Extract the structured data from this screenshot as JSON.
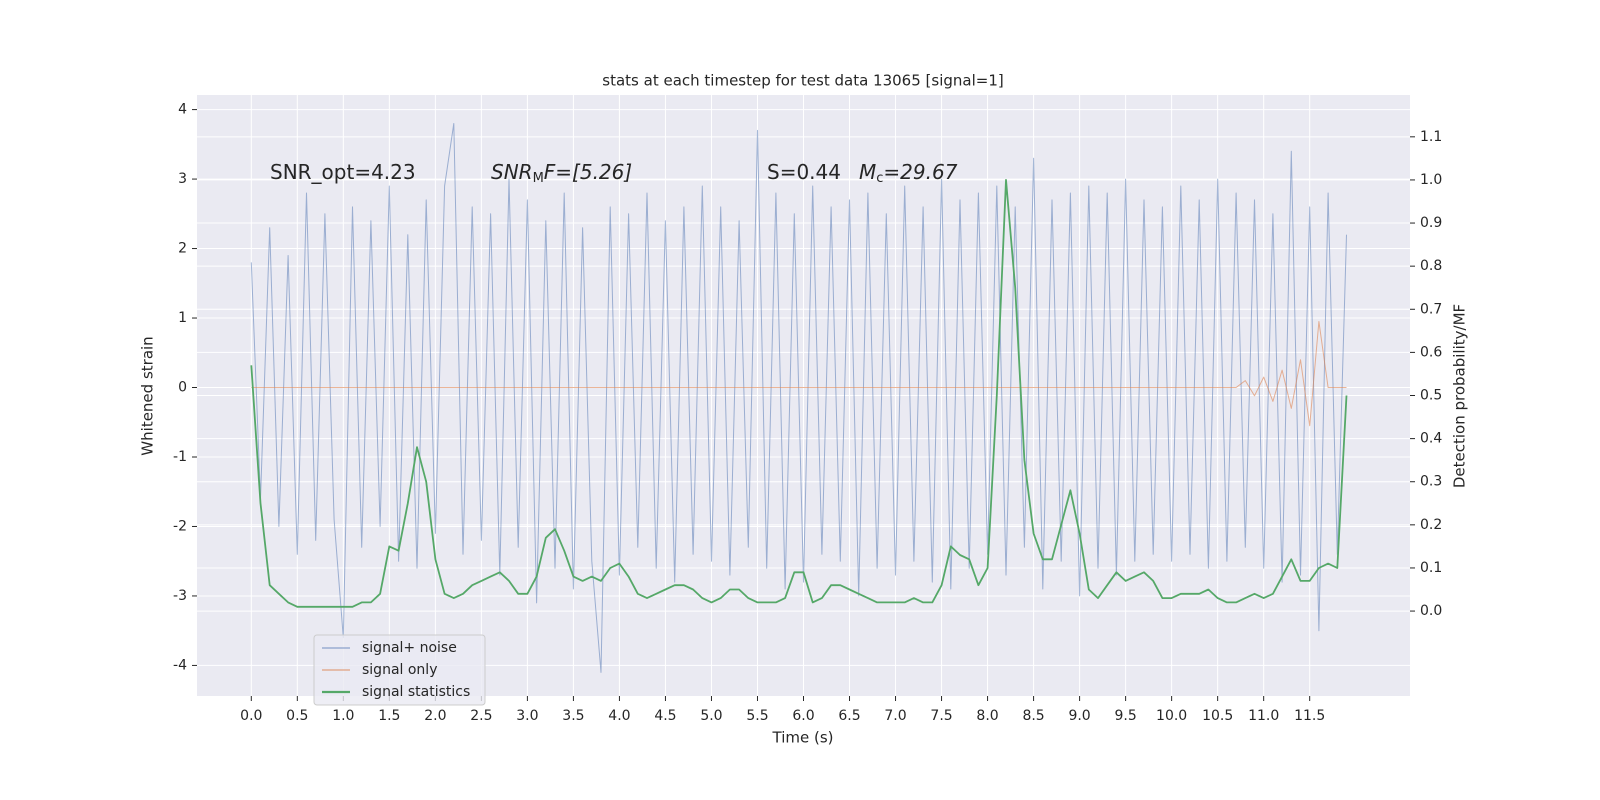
{
  "chart_data": {
    "type": "line",
    "title": "stats at each timestep for test data 13065 [signal=1]",
    "xlabel": "Time (s)",
    "ylabel": "Whitened strain",
    "y2label": "Detection probability/MF",
    "annotations": [
      {
        "parts": [
          "SNR_opt=4.23"
        ]
      },
      {
        "parts": [
          "SNR",
          "M",
          "F=[5.26]"
        ]
      },
      {
        "parts": [
          "S=0.44"
        ]
      },
      {
        "parts": [
          "M",
          "c",
          "=29.67"
        ]
      }
    ],
    "x": [
      0,
      0.1,
      0.2,
      0.3,
      0.4,
      0.5,
      0.6,
      0.7,
      0.8,
      0.9,
      1,
      1.1,
      1.2,
      1.3,
      1.4,
      1.5,
      1.6,
      1.7,
      1.8,
      1.9,
      2,
      2.1,
      2.2,
      2.3,
      2.4,
      2.5,
      2.6,
      2.7,
      2.8,
      2.9,
      3,
      3.1,
      3.2,
      3.3,
      3.4,
      3.5,
      3.6,
      3.7,
      3.8,
      3.9,
      4,
      4.1,
      4.2,
      4.3,
      4.4,
      4.5,
      4.6,
      4.7,
      4.8,
      4.9,
      5,
      5.1,
      5.2,
      5.3,
      5.4,
      5.5,
      5.6,
      5.7,
      5.8,
      5.9,
      6,
      6.1,
      6.2,
      6.3,
      6.4,
      6.5,
      6.6,
      6.7,
      6.8,
      6.9,
      7,
      7.1,
      7.2,
      7.3,
      7.4,
      7.5,
      7.6,
      7.7,
      7.8,
      7.9,
      8,
      8.1,
      8.2,
      8.3,
      8.4,
      8.5,
      8.6,
      8.7,
      8.8,
      8.9,
      9,
      9.1,
      9.2,
      9.3,
      9.4,
      9.5,
      9.6,
      9.7,
      9.8,
      9.9,
      10,
      10.1,
      10.2,
      10.3,
      10.4,
      10.5,
      10.6,
      10.7,
      10.8,
      10.9,
      11,
      11.1,
      11.2,
      11.3,
      11.4,
      11.5,
      11.6,
      11.7,
      11.8,
      11.9
    ],
    "series": [
      {
        "name": "signal+ noise",
        "color": "#4c72b0",
        "values": [
          1.8,
          -1.6,
          2.3,
          -2.0,
          1.9,
          -2.4,
          2.8,
          -2.2,
          2.5,
          -1.9,
          -3.6,
          2.6,
          -2.3,
          2.4,
          -2.0,
          2.9,
          -2.5,
          2.2,
          -2.6,
          2.7,
          -2.1,
          2.9,
          3.8,
          -2.4,
          2.6,
          -2.2,
          2.5,
          -2.7,
          3.0,
          -2.3,
          2.7,
          -3.1,
          2.4,
          -2.6,
          2.8,
          -2.9,
          2.3,
          -2.5,
          -4.1,
          2.6,
          -2.7,
          2.5,
          -2.3,
          2.8,
          -2.6,
          2.4,
          -2.8,
          2.6,
          -2.4,
          2.9,
          -2.5,
          2.6,
          -2.7,
          2.4,
          -2.3,
          3.7,
          -2.6,
          2.8,
          -2.9,
          2.5,
          -2.8,
          2.9,
          -2.4,
          2.6,
          -2.5,
          2.7,
          -3.0,
          2.8,
          -2.6,
          2.5,
          -2.7,
          2.9,
          -2.5,
          2.6,
          -2.8,
          3.0,
          -2.9,
          2.7,
          -2.6,
          2.8,
          -2.4,
          2.9,
          -2.7,
          2.6,
          -2.3,
          3.3,
          -2.9,
          2.7,
          -2.5,
          2.8,
          -3.0,
          2.9,
          -2.6,
          2.8,
          -2.7,
          3.0,
          -2.5,
          2.7,
          -2.4,
          2.6,
          -2.5,
          2.9,
          -2.4,
          2.7,
          -2.6,
          3.0,
          -2.5,
          2.8,
          -2.3,
          2.7,
          -2.6,
          2.5,
          -2.8,
          3.4,
          -2.7,
          2.6,
          -3.5,
          2.8,
          -2.4,
          2.2
        ]
      },
      {
        "name": "signal only",
        "color": "#dd8452",
        "values": [
          0,
          0,
          0,
          0,
          0,
          0,
          0,
          0,
          0,
          0,
          0,
          0,
          0,
          0,
          0,
          0,
          0,
          0,
          0,
          0,
          0,
          0,
          0,
          0,
          0,
          0,
          0,
          0,
          0,
          0,
          0,
          0,
          0,
          0,
          0,
          0,
          0,
          0,
          0,
          0,
          0,
          0,
          0,
          0,
          0,
          0,
          0,
          0,
          0,
          0,
          0,
          0,
          0,
          0,
          0,
          0,
          0,
          0,
          0,
          0,
          0,
          0,
          0,
          0,
          0,
          0,
          0,
          0,
          0,
          0,
          0,
          0,
          0,
          0,
          0,
          0,
          0,
          0,
          0,
          0,
          0,
          0,
          0,
          0,
          0,
          0,
          0,
          0,
          0,
          0,
          0,
          0,
          0,
          0,
          0,
          0,
          0,
          0,
          0,
          0,
          0,
          0,
          0,
          0,
          0,
          0,
          0,
          0,
          0.1,
          -0.12,
          0.15,
          -0.2,
          0.25,
          -0.3,
          0.4,
          -0.55,
          0.95,
          0,
          0,
          0
        ]
      },
      {
        "name": "signal statistics",
        "color": "#55a868",
        "axis": "y2",
        "values": [
          0.57,
          0.25,
          0.06,
          0.04,
          0.02,
          0.01,
          0.01,
          0.01,
          0.01,
          0.01,
          0.01,
          0.01,
          0.02,
          0.02,
          0.04,
          0.15,
          0.14,
          0.25,
          0.38,
          0.3,
          0.12,
          0.04,
          0.03,
          0.04,
          0.06,
          0.07,
          0.08,
          0.09,
          0.07,
          0.04,
          0.04,
          0.08,
          0.17,
          0.19,
          0.14,
          0.08,
          0.07,
          0.08,
          0.07,
          0.1,
          0.11,
          0.08,
          0.04,
          0.03,
          0.04,
          0.05,
          0.06,
          0.06,
          0.05,
          0.03,
          0.02,
          0.03,
          0.05,
          0.05,
          0.03,
          0.02,
          0.02,
          0.02,
          0.03,
          0.09,
          0.09,
          0.02,
          0.03,
          0.06,
          0.06,
          0.05,
          0.04,
          0.03,
          0.02,
          0.02,
          0.02,
          0.02,
          0.03,
          0.02,
          0.02,
          0.06,
          0.15,
          0.13,
          0.12,
          0.06,
          0.1,
          0.5,
          1.0,
          0.75,
          0.35,
          0.18,
          0.12,
          0.12,
          0.2,
          0.28,
          0.18,
          0.05,
          0.03,
          0.06,
          0.09,
          0.07,
          0.08,
          0.09,
          0.07,
          0.03,
          0.03,
          0.04,
          0.04,
          0.04,
          0.05,
          0.03,
          0.02,
          0.02,
          0.03,
          0.04,
          0.03,
          0.04,
          0.08,
          0.12,
          0.07,
          0.07,
          0.1,
          0.11,
          0.1,
          0.5
        ]
      }
    ],
    "xlim": [
      -0.59,
      12.59
    ],
    "xticks": [
      {
        "value": 0,
        "label": "0.0"
      },
      0.5,
      {
        "value": 1,
        "label": "1.0"
      },
      1.5,
      {
        "value": 2,
        "label": "2.0"
      },
      2.5,
      {
        "value": 3,
        "label": "3.0"
      },
      3.5,
      {
        "value": 4,
        "label": "4.0"
      },
      4.5,
      {
        "value": 5,
        "label": "5.0"
      },
      5.5,
      {
        "value": 6,
        "label": "6.0"
      },
      6.5,
      {
        "value": 7,
        "label": "7.0"
      },
      7.5,
      {
        "value": 8,
        "label": "8.0"
      },
      8.5,
      {
        "value": 9,
        "label": "9.0"
      },
      9.5,
      {
        "value": 10,
        "label": "10.0"
      },
      10.5,
      {
        "value": 11,
        "label": "11.0"
      },
      11.5
    ],
    "ylim": [
      -4.44,
      4.21
    ],
    "yticks": [
      -4,
      -3,
      -2,
      -1,
      0,
      1,
      2,
      3,
      4
    ],
    "y2lim": [
      -0.197,
      1.197
    ],
    "y2ticks": [
      {
        "value": 0,
        "label": "0.0"
      },
      0.1,
      0.2,
      0.3,
      0.4,
      0.5,
      0.6,
      0.7,
      0.8,
      0.9,
      {
        "value": 1,
        "label": "1.0"
      },
      1.1
    ],
    "grid": true,
    "legend": "lower left"
  }
}
